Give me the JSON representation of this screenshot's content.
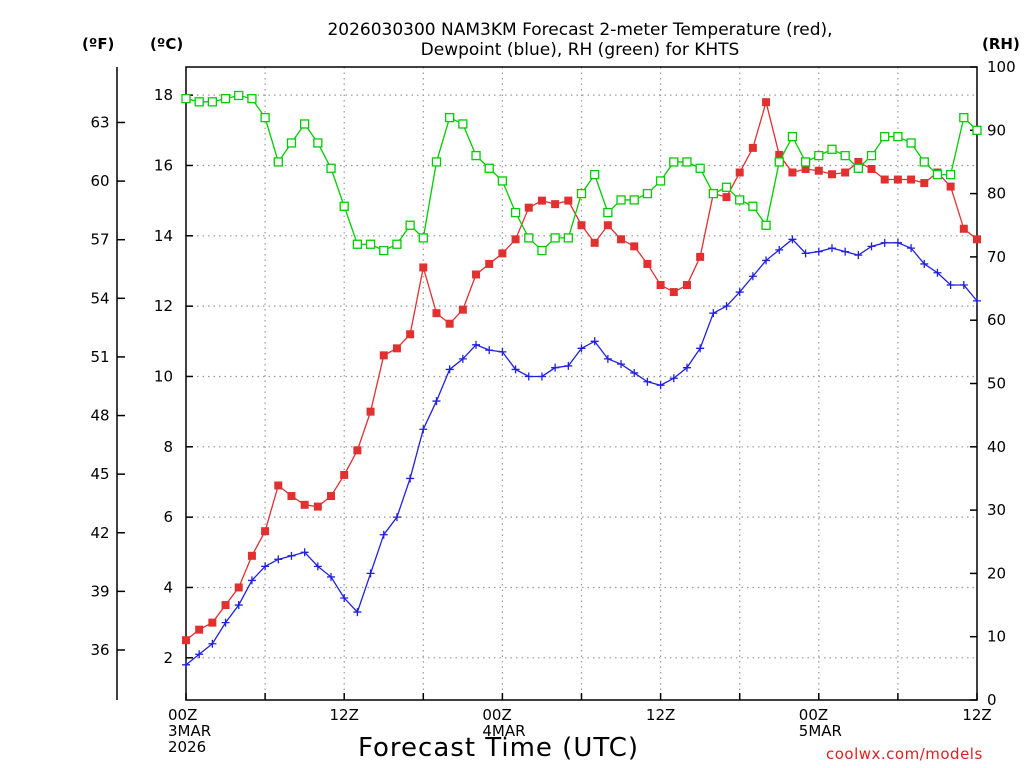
{
  "chart_data": {
    "type": "line",
    "title_line1": "2026030300 NAM3KM Forecast 2-meter Temperature (red),",
    "title_line2": "Dewpoint (blue), RH (green) for KHTS",
    "unit_left_f": "(ºF)",
    "unit_left_c": "(ºC)",
    "unit_right": "(RH)",
    "xlabel": "Forecast Time (UTC)",
    "credit": "coolwx.com/models",
    "x_range_hours": [
      0,
      60
    ],
    "x_ticks": [
      {
        "hour": 0,
        "label": "00Z",
        "date": "3MAR",
        "year": "2026"
      },
      {
        "hour": 12,
        "label": "12Z",
        "date": "",
        "year": ""
      },
      {
        "hour": 24,
        "label": "00Z",
        "date": "4MAR",
        "year": ""
      },
      {
        "hour": 36,
        "label": "12Z",
        "date": "",
        "year": ""
      },
      {
        "hour": 48,
        "label": "00Z",
        "date": "5MAR",
        "year": ""
      },
      {
        "hour": 60,
        "label": "12Z",
        "date": "",
        "year": ""
      }
    ],
    "y_celsius": {
      "ylim": [
        0.8,
        18.8
      ],
      "ticks": [
        2,
        4,
        6,
        8,
        10,
        12,
        14,
        16,
        18
      ]
    },
    "y_fahrenheit": {
      "ticks": [
        36,
        39,
        42,
        45,
        48,
        51,
        54,
        57,
        60,
        63
      ]
    },
    "y_rh": {
      "ylim": [
        0,
        100
      ],
      "ticks": [
        0,
        10,
        20,
        30,
        40,
        50,
        60,
        70,
        80,
        90,
        100
      ]
    },
    "x": [
      0,
      1,
      2,
      3,
      4,
      5,
      6,
      7,
      8,
      9,
      10,
      11,
      12,
      13,
      14,
      15,
      16,
      17,
      18,
      19,
      20,
      21,
      22,
      23,
      24,
      25,
      26,
      27,
      28,
      29,
      30,
      31,
      32,
      33,
      34,
      35,
      36,
      37,
      38,
      39,
      40,
      41,
      42,
      43,
      44,
      45,
      46,
      47,
      48,
      49,
      50,
      51,
      52,
      53,
      54,
      55,
      56,
      57,
      58,
      59,
      60
    ],
    "series": [
      {
        "name": "Temperature (C)",
        "color": "#e03030",
        "marker": "filled-square",
        "values": [
          2.5,
          2.8,
          3.0,
          3.5,
          4.0,
          4.9,
          5.6,
          6.9,
          6.6,
          6.35,
          6.3,
          6.6,
          7.2,
          7.9,
          9.0,
          10.6,
          10.8,
          11.2,
          13.1,
          11.8,
          11.5,
          11.9,
          12.9,
          13.2,
          13.5,
          13.9,
          14.8,
          15.0,
          14.9,
          15.0,
          14.3,
          13.8,
          14.3,
          13.9,
          13.7,
          13.2,
          12.6,
          12.4,
          12.6,
          13.4,
          15.2,
          15.1,
          15.8,
          16.5,
          17.8,
          16.3,
          15.8,
          15.9,
          15.85,
          15.75,
          15.8,
          16.1,
          15.9,
          15.6,
          15.6,
          15.6,
          15.5,
          15.8,
          15.4,
          14.2,
          13.9
        ]
      },
      {
        "name": "Dewpoint (C)",
        "color": "#2020e0",
        "marker": "plus",
        "values": [
          1.8,
          2.1,
          2.4,
          3.0,
          3.5,
          4.2,
          4.6,
          4.8,
          4.9,
          5.0,
          4.6,
          4.3,
          3.7,
          3.3,
          4.4,
          5.5,
          6.0,
          7.1,
          8.5,
          9.3,
          10.2,
          10.5,
          10.9,
          10.75,
          10.7,
          10.2,
          10.0,
          10.0,
          10.25,
          10.3,
          10.8,
          11.0,
          10.5,
          10.35,
          10.1,
          9.85,
          9.75,
          9.95,
          10.25,
          10.8,
          11.8,
          12.0,
          12.4,
          12.85,
          13.3,
          13.6,
          13.9,
          13.5,
          13.55,
          13.65,
          13.55,
          13.45,
          13.7,
          13.8,
          13.8,
          13.65,
          13.2,
          12.95,
          12.6,
          12.6,
          12.15
        ]
      },
      {
        "name": "RH (%)",
        "color": "#00cc00",
        "marker": "open-square",
        "values": [
          95,
          94.5,
          94.5,
          95,
          95.5,
          95,
          92,
          85,
          88,
          91,
          88,
          84,
          78,
          72,
          72,
          71,
          72,
          75,
          73,
          85,
          92,
          91,
          86,
          84,
          82,
          77,
          73,
          71,
          73,
          73,
          80,
          83,
          77,
          79,
          79,
          80,
          82,
          85,
          85,
          84,
          80,
          81,
          79,
          78,
          75,
          85,
          89,
          85,
          86,
          87,
          86,
          84,
          86,
          89,
          89,
          88,
          85,
          83,
          83,
          92,
          90
        ]
      }
    ]
  }
}
